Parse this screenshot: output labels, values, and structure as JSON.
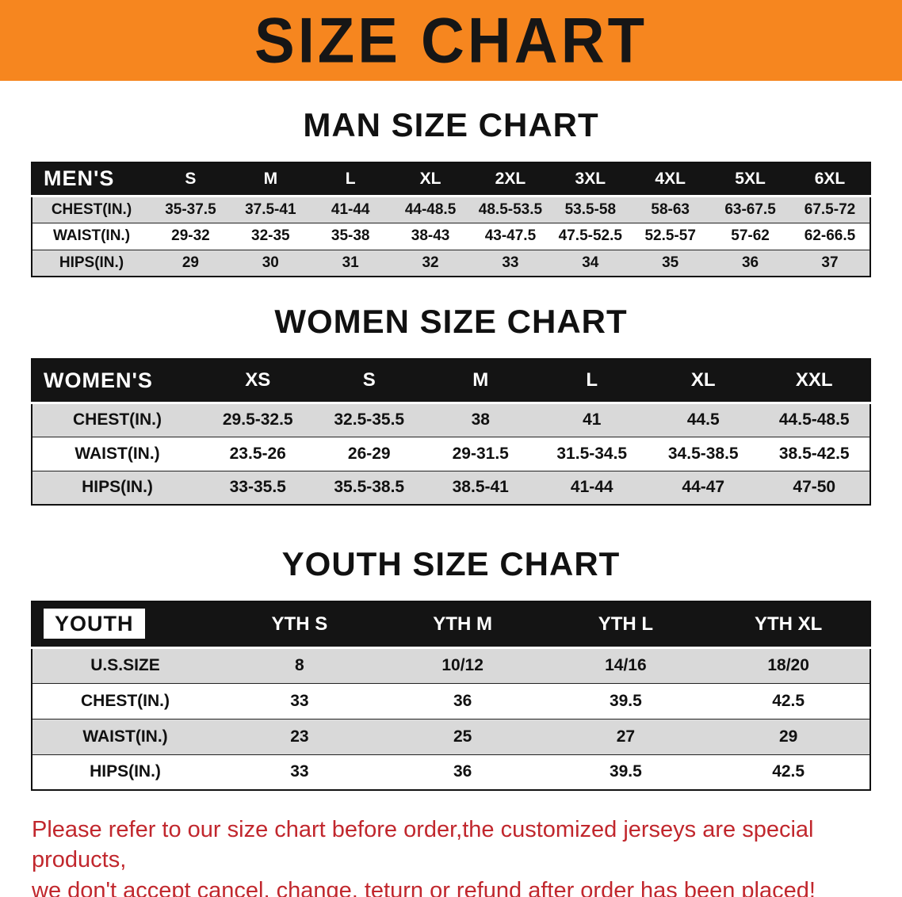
{
  "banner": {
    "title": "SIZE CHART"
  },
  "charts": [
    {
      "id": "men",
      "heading": "MAN SIZE CHART",
      "corner_label": "MEN'S",
      "columns": [
        "S",
        "M",
        "L",
        "XL",
        "2XL",
        "3XL",
        "4XL",
        "5XL",
        "6XL"
      ],
      "rows": [
        {
          "label": "CHEST(IN.)",
          "values": [
            "35-37.5",
            "37.5-41",
            "41-44",
            "44-48.5",
            "48.5-53.5",
            "53.5-58",
            "58-63",
            "63-67.5",
            "67.5-72"
          ]
        },
        {
          "label": "WAIST(IN.)",
          "values": [
            "29-32",
            "32-35",
            "35-38",
            "38-43",
            "43-47.5",
            "47.5-52.5",
            "52.5-57",
            "57-62",
            "62-66.5"
          ]
        },
        {
          "label": "HIPS(IN.)",
          "values": [
            "29",
            "30",
            "31",
            "32",
            "33",
            "34",
            "35",
            "36",
            "37"
          ]
        }
      ]
    },
    {
      "id": "women",
      "heading": "WOMEN SIZE CHART",
      "corner_label": "WOMEN'S",
      "columns": [
        "XS",
        "S",
        "M",
        "L",
        "XL",
        "XXL"
      ],
      "rows": [
        {
          "label": "CHEST(IN.)",
          "values": [
            "29.5-32.5",
            "32.5-35.5",
            "38",
            "41",
            "44.5",
            "44.5-48.5"
          ]
        },
        {
          "label": "WAIST(IN.)",
          "values": [
            "23.5-26",
            "26-29",
            "29-31.5",
            "31.5-34.5",
            "34.5-38.5",
            "38.5-42.5"
          ]
        },
        {
          "label": "HIPS(IN.)",
          "values": [
            "33-35.5",
            "35.5-38.5",
            "38.5-41",
            "41-44",
            "44-47",
            "47-50"
          ]
        }
      ]
    },
    {
      "id": "youth",
      "heading": "YOUTH SIZE CHART",
      "corner_label": "YOUTH",
      "columns": [
        "YTH S",
        "YTH M",
        "YTH L",
        "YTH XL"
      ],
      "rows": [
        {
          "label": "U.S.SIZE",
          "values": [
            "8",
            "10/12",
            "14/16",
            "18/20"
          ]
        },
        {
          "label": "CHEST(IN.)",
          "values": [
            "33",
            "36",
            "39.5",
            "42.5"
          ]
        },
        {
          "label": "WAIST(IN.)",
          "values": [
            "23",
            "25",
            "27",
            "29"
          ]
        },
        {
          "label": "HIPS(IN.)",
          "values": [
            "33",
            "36",
            "39.5",
            "42.5"
          ]
        }
      ]
    }
  ],
  "footer": {
    "line1": "Please refer to our size chart before order,the customized jerseys are special products,",
    "line2": "we don't accept cancel, change, teturn or refund after order has been placed!"
  },
  "colors": {
    "banner_bg": "#f6861f",
    "header_bg": "#141414",
    "row_alt_bg": "#d9d9d9",
    "footer_text": "#c1272d"
  }
}
